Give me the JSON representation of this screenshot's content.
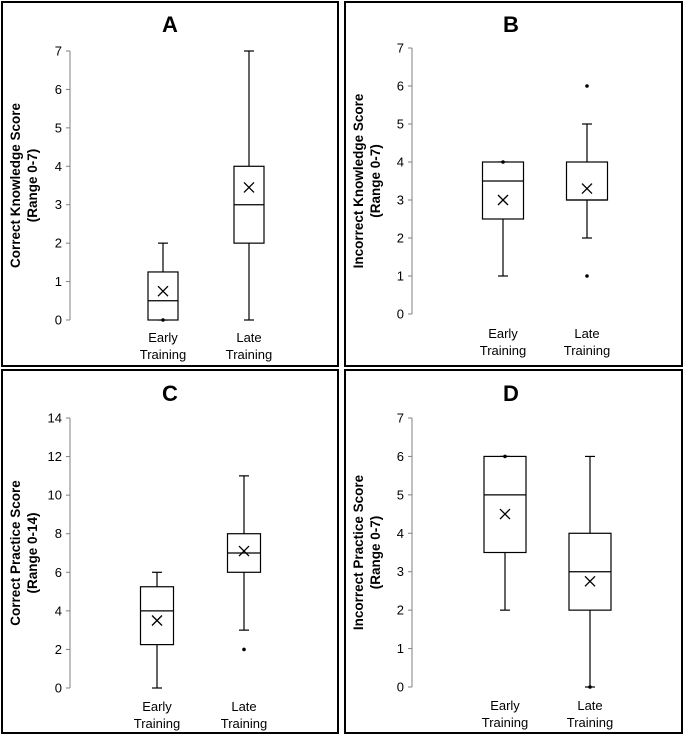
{
  "colors": {
    "frame": "#000000",
    "axis": "#808080",
    "box": "#000000",
    "background": "#ffffff"
  },
  "chart_data": [
    {
      "type": "boxplot",
      "panel": "A",
      "title": "A",
      "ylabel": [
        "Correct Knowledge Score",
        "(Range 0-7)"
      ],
      "ylim": [
        0,
        7
      ],
      "yticks": [
        0,
        1,
        2,
        3,
        4,
        5,
        6,
        7
      ],
      "categories": [
        [
          "Early",
          "Training"
        ],
        [
          "Late",
          "Training"
        ]
      ],
      "boxes": [
        {
          "category": "Early Training",
          "min": 0,
          "q1": 0,
          "median": 0.5,
          "q3": 1.25,
          "max": 2,
          "mean": 0.75,
          "outliers": [
            0
          ]
        },
        {
          "category": "Late Training",
          "min": 0,
          "q1": 2,
          "median": 3,
          "q3": 4,
          "max": 7,
          "mean": 3.45,
          "outliers": []
        }
      ]
    },
    {
      "type": "boxplot",
      "panel": "B",
      "title": "B",
      "ylabel": [
        "Incorrect Knowledge Score",
        "(Range 0-7)"
      ],
      "ylim": [
        0,
        7
      ],
      "yticks": [
        0,
        1,
        2,
        3,
        4,
        5,
        6,
        7
      ],
      "categories": [
        [
          "Early",
          "Training"
        ],
        [
          "Late",
          "Training"
        ]
      ],
      "boxes": [
        {
          "category": "Early Training",
          "min": 1,
          "q1": 2.5,
          "median": 3.5,
          "q3": 4,
          "max": 4,
          "mean": 3,
          "outliers": [
            4
          ]
        },
        {
          "category": "Late Training",
          "min": 2,
          "q1": 3,
          "median": 3,
          "q3": 4,
          "max": 5,
          "mean": 3.3,
          "outliers": [
            6,
            1
          ]
        }
      ]
    },
    {
      "type": "boxplot",
      "panel": "C",
      "title": "C",
      "ylabel": [
        "Correct Practice Score",
        "(Range 0-14)"
      ],
      "ylim": [
        0,
        14
      ],
      "yticks": [
        0,
        2,
        4,
        6,
        8,
        10,
        12,
        14
      ],
      "categories": [
        [
          "Early",
          "Training"
        ],
        [
          "Late",
          "Training"
        ]
      ],
      "boxes": [
        {
          "category": "Early Training",
          "min": 0,
          "q1": 2.25,
          "median": 4,
          "q3": 5.25,
          "max": 6,
          "mean": 3.5,
          "outliers": []
        },
        {
          "category": "Late Training",
          "min": 3,
          "q1": 6,
          "median": 7,
          "q3": 8,
          "max": 11,
          "mean": 7.1,
          "outliers": [
            2
          ]
        }
      ]
    },
    {
      "type": "boxplot",
      "panel": "D",
      "title": "D",
      "ylabel": [
        "Incorrect Practice Score",
        "(Range 0-7)"
      ],
      "ylim": [
        0,
        7
      ],
      "yticks": [
        0,
        1,
        2,
        3,
        4,
        5,
        6,
        7
      ],
      "categories": [
        [
          "Early",
          "Training"
        ],
        [
          "Late",
          "Training"
        ]
      ],
      "boxes": [
        {
          "category": "Early Training",
          "min": 2,
          "q1": 3.5,
          "median": 5,
          "q3": 6,
          "max": 6,
          "mean": 4.5,
          "outliers": [
            6
          ]
        },
        {
          "category": "Late Training",
          "min": 0,
          "q1": 2,
          "median": 3,
          "q3": 4,
          "max": 6,
          "mean": 2.75,
          "outliers": [
            0
          ]
        }
      ]
    }
  ]
}
